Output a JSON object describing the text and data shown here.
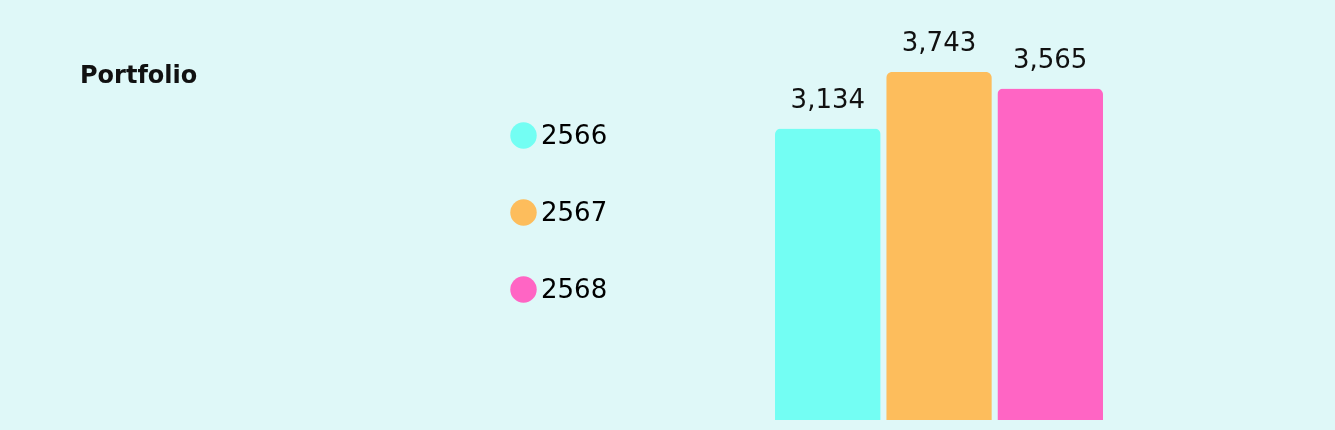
{
  "chart_data": {
    "type": "bar",
    "title": "Portfolio",
    "categories": [
      null
    ],
    "series": [
      {
        "name": "2566",
        "color": "#73fef3",
        "values": [
          3134
        ],
        "value_labels": [
          "3,134"
        ]
      },
      {
        "name": "2567",
        "color": "#fdbd5c",
        "values": [
          3743
        ],
        "value_labels": [
          "3,743"
        ]
      },
      {
        "name": "2568",
        "color": "#ff65c4",
        "values": [
          3565
        ],
        "value_labels": [
          "3,565"
        ]
      }
    ],
    "legend": "left",
    "grid": false
  }
}
